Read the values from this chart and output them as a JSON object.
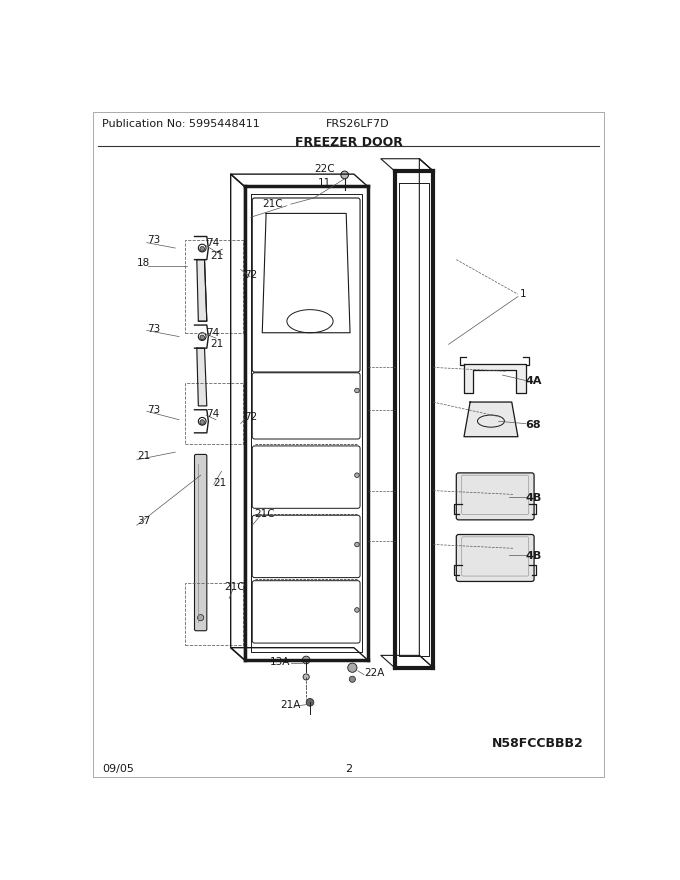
{
  "publication_no": "Publication No: 5995448411",
  "model": "FRS26LF7D",
  "section": "FREEZER DOOR",
  "date": "09/05",
  "page": "2",
  "footer_code": "N58FCCBBB2",
  "bg_color": "#ffffff",
  "line_color": "#1a1a1a",
  "text_color": "#1a1a1a",
  "title_fontsize": 9,
  "label_fontsize": 7.5,
  "header_fontsize": 8,
  "border_color": "#333333"
}
